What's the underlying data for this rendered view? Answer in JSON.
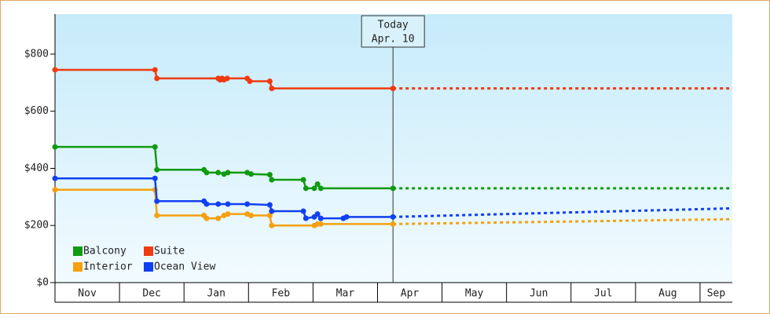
{
  "chart_data": {
    "type": "line",
    "categories": [
      "Nov",
      "Dec",
      "Jan",
      "Feb",
      "Mar",
      "Apr",
      "May",
      "Jun",
      "Jul",
      "Aug",
      "Sep"
    ],
    "xlim": [
      0,
      10.5
    ],
    "xticks": [
      0,
      1,
      2,
      3,
      4,
      5,
      6,
      7,
      8,
      9,
      10
    ],
    "ylim": [
      0,
      940
    ],
    "yticks": [
      {
        "value": 0,
        "label": "$0"
      },
      {
        "value": 200,
        "label": "$200"
      },
      {
        "value": 400,
        "label": "$400"
      },
      {
        "value": 600,
        "label": "$600"
      },
      {
        "value": 800,
        "label": "$800"
      }
    ],
    "today": {
      "x": 5.24,
      "label": "Today",
      "date": "Apr. 10"
    },
    "series": [
      {
        "name": "Balcony",
        "color": "#109a10",
        "x": [
          0,
          1.55,
          1.58,
          2.31,
          2.35,
          2.53,
          2.62,
          2.68,
          2.98,
          3.04,
          3.33,
          3.36,
          3.85,
          3.89,
          4.02,
          4.07,
          4.12,
          5.24
        ],
        "values": [
          475,
          475,
          395,
          395,
          385,
          385,
          380,
          385,
          385,
          380,
          378,
          360,
          360,
          330,
          330,
          345,
          330,
          330
        ],
        "forecast": {
          "x": [
            5.24,
            10.5
          ],
          "values": [
            330,
            330
          ]
        }
      },
      {
        "name": "Suite",
        "color": "#f03a10",
        "x": [
          0,
          1.55,
          1.58,
          2.53,
          2.56,
          2.59,
          2.62,
          2.67,
          2.98,
          3.02,
          3.33,
          3.36,
          5.24
        ],
        "values": [
          745,
          745,
          715,
          715,
          710,
          715,
          710,
          715,
          715,
          705,
          705,
          680,
          680
        ],
        "forecast": {
          "x": [
            5.24,
            10.5
          ],
          "values": [
            680,
            680
          ]
        }
      },
      {
        "name": "Interior",
        "color": "#f5a010",
        "x": [
          0,
          1.55,
          1.58,
          2.31,
          2.35,
          2.53,
          2.62,
          2.68,
          2.98,
          3.04,
          3.33,
          3.36,
          4.02,
          4.07,
          4.12,
          5.24
        ],
        "values": [
          325,
          325,
          235,
          235,
          225,
          225,
          235,
          240,
          240,
          235,
          235,
          200,
          200,
          205,
          205,
          205
        ],
        "forecast": {
          "x": [
            5.24,
            10.5
          ],
          "values": [
            205,
            222
          ]
        }
      },
      {
        "name": "Ocean View",
        "color": "#1040f0",
        "x": [
          0,
          1.55,
          1.58,
          2.31,
          2.35,
          2.53,
          2.68,
          2.98,
          3.33,
          3.36,
          3.85,
          3.89,
          4.02,
          4.07,
          4.12,
          4.47,
          4.52,
          5.24
        ],
        "values": [
          365,
          365,
          285,
          285,
          275,
          275,
          275,
          275,
          272,
          250,
          250,
          225,
          230,
          240,
          225,
          225,
          230,
          230
        ],
        "forecast": {
          "x": [
            5.24,
            10.5
          ],
          "values": [
            230,
            260
          ]
        }
      }
    ]
  }
}
